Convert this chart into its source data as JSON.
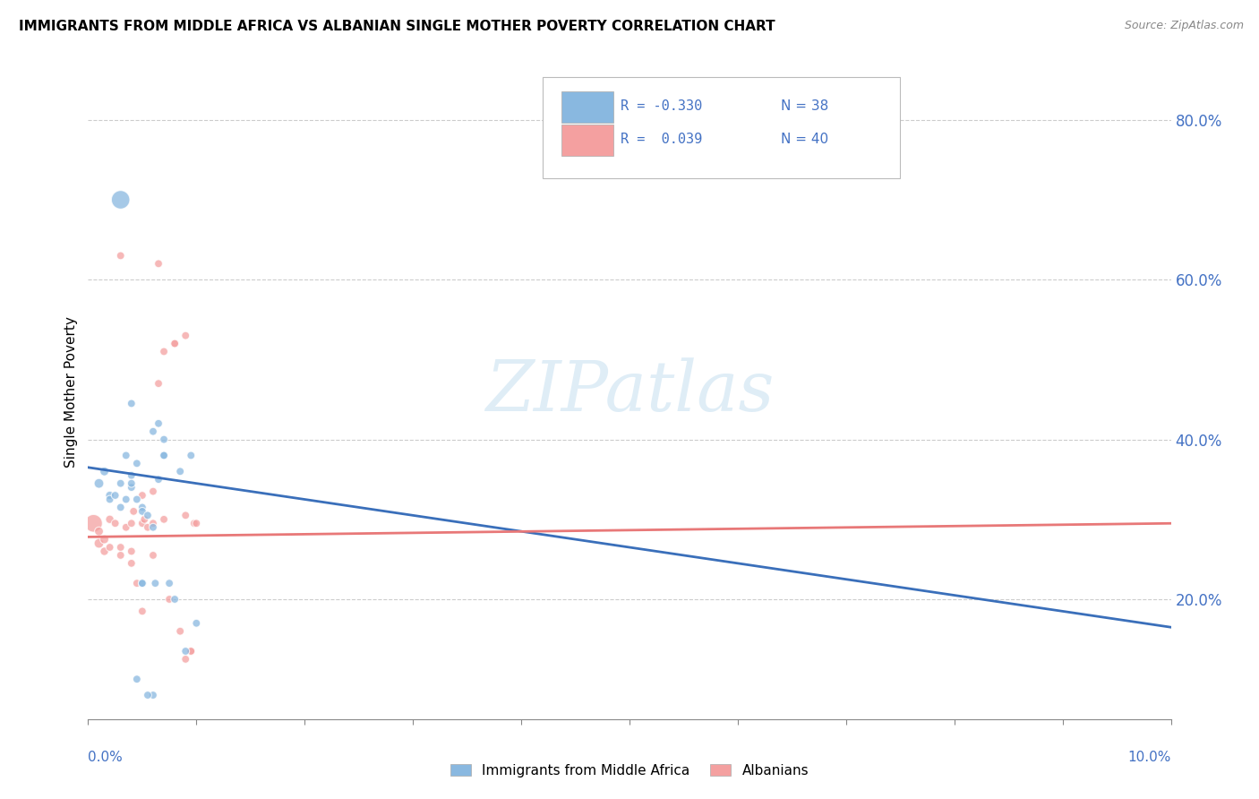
{
  "title": "IMMIGRANTS FROM MIDDLE AFRICA VS ALBANIAN SINGLE MOTHER POVERTY CORRELATION CHART",
  "source": "Source: ZipAtlas.com",
  "ylabel": "Single Mother Poverty",
  "right_yticks": [
    "80.0%",
    "60.0%",
    "40.0%",
    "20.0%"
  ],
  "right_ytick_vals": [
    0.8,
    0.6,
    0.4,
    0.2
  ],
  "blue_color": "#89b8e0",
  "pink_color": "#f4a0a0",
  "blue_line_color": "#3a6fba",
  "pink_line_color": "#e87878",
  "watermark": "ZIPatlas",
  "legend_r1": "R = -0.330",
  "legend_n1": "N = 38",
  "legend_r2": "R =  0.039",
  "legend_n2": "N = 40",
  "blue_dots": [
    [
      0.001,
      0.345
    ],
    [
      0.0015,
      0.36
    ],
    [
      0.002,
      0.33
    ],
    [
      0.002,
      0.325
    ],
    [
      0.003,
      0.345
    ],
    [
      0.003,
      0.315
    ],
    [
      0.003,
      0.7
    ],
    [
      0.0035,
      0.38
    ],
    [
      0.004,
      0.34
    ],
    [
      0.004,
      0.355
    ],
    [
      0.004,
      0.345
    ],
    [
      0.0045,
      0.37
    ],
    [
      0.0045,
      0.325
    ],
    [
      0.005,
      0.315
    ],
    [
      0.005,
      0.31
    ],
    [
      0.005,
      0.22
    ],
    [
      0.0055,
      0.305
    ],
    [
      0.006,
      0.41
    ],
    [
      0.006,
      0.08
    ],
    [
      0.0065,
      0.35
    ],
    [
      0.0065,
      0.42
    ],
    [
      0.007,
      0.38
    ],
    [
      0.007,
      0.4
    ],
    [
      0.0075,
      0.22
    ],
    [
      0.008,
      0.2
    ],
    [
      0.0085,
      0.36
    ],
    [
      0.009,
      0.135
    ],
    [
      0.0095,
      0.38
    ],
    [
      0.01,
      0.17
    ],
    [
      0.0045,
      0.1
    ],
    [
      0.005,
      0.22
    ],
    [
      0.006,
      0.29
    ],
    [
      0.0055,
      0.08
    ],
    [
      0.0062,
      0.22
    ],
    [
      0.004,
      0.445
    ],
    [
      0.007,
      0.38
    ],
    [
      0.0035,
      0.325
    ],
    [
      0.0025,
      0.33
    ]
  ],
  "pink_dots": [
    [
      0.0005,
      0.295
    ],
    [
      0.001,
      0.27
    ],
    [
      0.001,
      0.285
    ],
    [
      0.0015,
      0.275
    ],
    [
      0.0015,
      0.26
    ],
    [
      0.002,
      0.3
    ],
    [
      0.002,
      0.265
    ],
    [
      0.0025,
      0.295
    ],
    [
      0.003,
      0.63
    ],
    [
      0.003,
      0.265
    ],
    [
      0.003,
      0.255
    ],
    [
      0.0035,
      0.29
    ],
    [
      0.004,
      0.245
    ],
    [
      0.004,
      0.295
    ],
    [
      0.004,
      0.26
    ],
    [
      0.0042,
      0.31
    ],
    [
      0.0045,
      0.22
    ],
    [
      0.005,
      0.295
    ],
    [
      0.005,
      0.33
    ],
    [
      0.005,
      0.185
    ],
    [
      0.0052,
      0.3
    ],
    [
      0.0055,
      0.29
    ],
    [
      0.006,
      0.295
    ],
    [
      0.006,
      0.335
    ],
    [
      0.006,
      0.255
    ],
    [
      0.0065,
      0.62
    ],
    [
      0.0065,
      0.47
    ],
    [
      0.007,
      0.3
    ],
    [
      0.0075,
      0.2
    ],
    [
      0.008,
      0.52
    ],
    [
      0.0085,
      0.16
    ],
    [
      0.009,
      0.125
    ],
    [
      0.009,
      0.305
    ],
    [
      0.009,
      0.53
    ],
    [
      0.0095,
      0.135
    ],
    [
      0.0095,
      0.135
    ],
    [
      0.0098,
      0.295
    ],
    [
      0.01,
      0.295
    ],
    [
      0.007,
      0.51
    ],
    [
      0.008,
      0.52
    ]
  ],
  "blue_sizes": [
    60,
    50,
    45,
    40,
    40,
    40,
    220,
    40,
    40,
    40,
    40,
    40,
    40,
    40,
    40,
    40,
    40,
    40,
    40,
    40,
    40,
    40,
    40,
    40,
    40,
    40,
    40,
    40,
    40,
    40,
    40,
    40,
    40,
    40,
    40,
    40,
    40,
    40
  ],
  "pink_sizes": [
    200,
    60,
    50,
    50,
    45,
    45,
    40,
    40,
    40,
    40,
    40,
    40,
    40,
    40,
    40,
    40,
    40,
    40,
    40,
    40,
    40,
    40,
    40,
    40,
    40,
    40,
    40,
    40,
    40,
    40,
    40,
    40,
    40,
    40,
    40,
    40,
    40,
    40,
    40,
    40
  ],
  "xmin": 0.0,
  "xmax": 0.1,
  "ymin": 0.05,
  "ymax": 0.87,
  "blue_line_y0": 0.365,
  "blue_line_y1": 0.165,
  "pink_line_y0": 0.278,
  "pink_line_y1": 0.295
}
